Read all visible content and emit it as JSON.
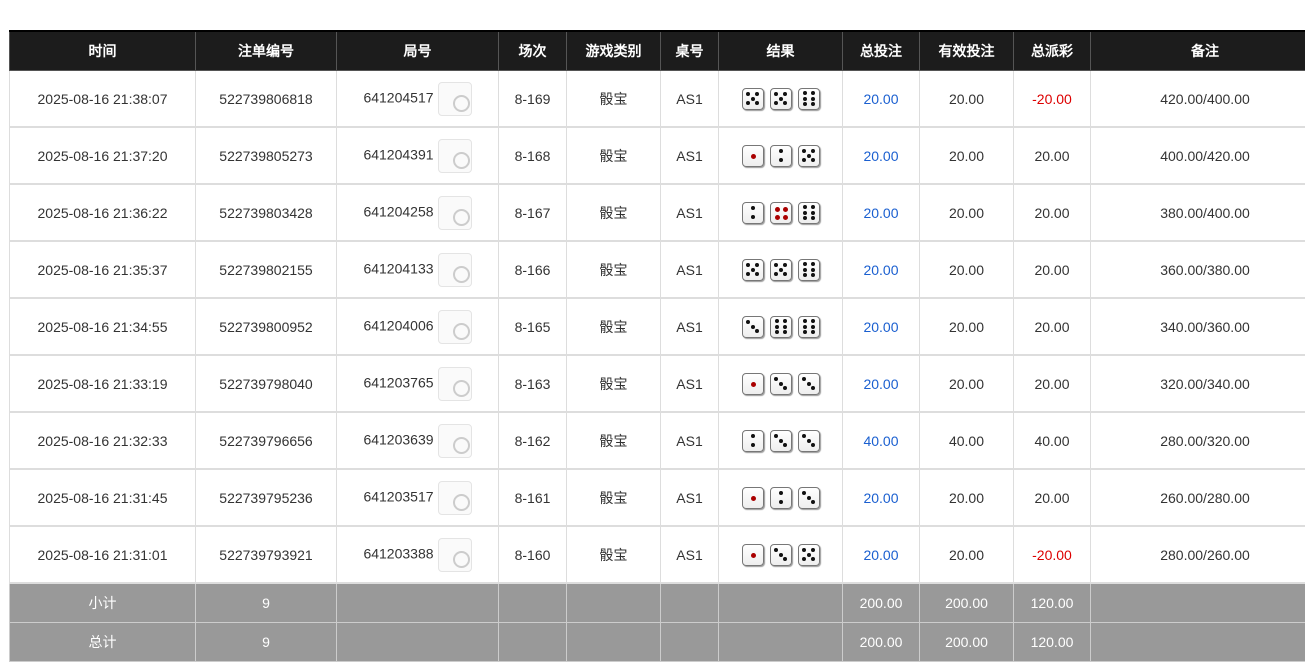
{
  "headers": [
    "时间",
    "注单编号",
    "局号",
    "场次",
    "游戏类别",
    "桌号",
    "结果",
    "总投注",
    "有效投注",
    "总派彩",
    "备注"
  ],
  "rows": [
    {
      "time": "2025-08-16 21:38:07",
      "bet_id": "522739806818",
      "round": "641204517",
      "session": "8-169",
      "game": "骰宝",
      "table": "AS1",
      "dice": [
        5,
        5,
        6
      ],
      "total_bet": "20.00",
      "valid_bet": "20.00",
      "payout": "-20.00",
      "note": "420.00/400.00"
    },
    {
      "time": "2025-08-16 21:37:20",
      "bet_id": "522739805273",
      "round": "641204391",
      "session": "8-168",
      "game": "骰宝",
      "table": "AS1",
      "dice": [
        1,
        2,
        5
      ],
      "total_bet": "20.00",
      "valid_bet": "20.00",
      "payout": "20.00",
      "note": "400.00/420.00"
    },
    {
      "time": "2025-08-16 21:36:22",
      "bet_id": "522739803428",
      "round": "641204258",
      "session": "8-167",
      "game": "骰宝",
      "table": "AS1",
      "dice": [
        2,
        4,
        6
      ],
      "total_bet": "20.00",
      "valid_bet": "20.00",
      "payout": "20.00",
      "note": "380.00/400.00"
    },
    {
      "time": "2025-08-16 21:35:37",
      "bet_id": "522739802155",
      "round": "641204133",
      "session": "8-166",
      "game": "骰宝",
      "table": "AS1",
      "dice": [
        5,
        5,
        6
      ],
      "total_bet": "20.00",
      "valid_bet": "20.00",
      "payout": "20.00",
      "note": "360.00/380.00"
    },
    {
      "time": "2025-08-16 21:34:55",
      "bet_id": "522739800952",
      "round": "641204006",
      "session": "8-165",
      "game": "骰宝",
      "table": "AS1",
      "dice": [
        3,
        6,
        6
      ],
      "total_bet": "20.00",
      "valid_bet": "20.00",
      "payout": "20.00",
      "note": "340.00/360.00"
    },
    {
      "time": "2025-08-16 21:33:19",
      "bet_id": "522739798040",
      "round": "641203765",
      "session": "8-163",
      "game": "骰宝",
      "table": "AS1",
      "dice": [
        1,
        3,
        3
      ],
      "total_bet": "20.00",
      "valid_bet": "20.00",
      "payout": "20.00",
      "note": "320.00/340.00"
    },
    {
      "time": "2025-08-16 21:32:33",
      "bet_id": "522739796656",
      "round": "641203639",
      "session": "8-162",
      "game": "骰宝",
      "table": "AS1",
      "dice": [
        2,
        3,
        3
      ],
      "total_bet": "40.00",
      "valid_bet": "40.00",
      "payout": "40.00",
      "note": "280.00/320.00"
    },
    {
      "time": "2025-08-16 21:31:45",
      "bet_id": "522739795236",
      "round": "641203517",
      "session": "8-161",
      "game": "骰宝",
      "table": "AS1",
      "dice": [
        1,
        2,
        3
      ],
      "total_bet": "20.00",
      "valid_bet": "20.00",
      "payout": "20.00",
      "note": "260.00/280.00"
    },
    {
      "time": "2025-08-16 21:31:01",
      "bet_id": "522739793921",
      "round": "641203388",
      "session": "8-160",
      "game": "骰宝",
      "table": "AS1",
      "dice": [
        1,
        3,
        5
      ],
      "total_bet": "20.00",
      "valid_bet": "20.00",
      "payout": "-20.00",
      "note": "280.00/260.00"
    }
  ],
  "summary": [
    {
      "label": "小计",
      "count": "9",
      "total_bet": "200.00",
      "valid_bet": "200.00",
      "payout": "120.00"
    },
    {
      "label": "总计",
      "count": "9",
      "total_bet": "200.00",
      "valid_bet": "200.00",
      "payout": "120.00"
    }
  ],
  "colors": {
    "header_bg": "#1c1c1c",
    "summary_bg": "#999999",
    "bet_blue": "#1a5fd0",
    "loss_red": "#dd0000"
  }
}
